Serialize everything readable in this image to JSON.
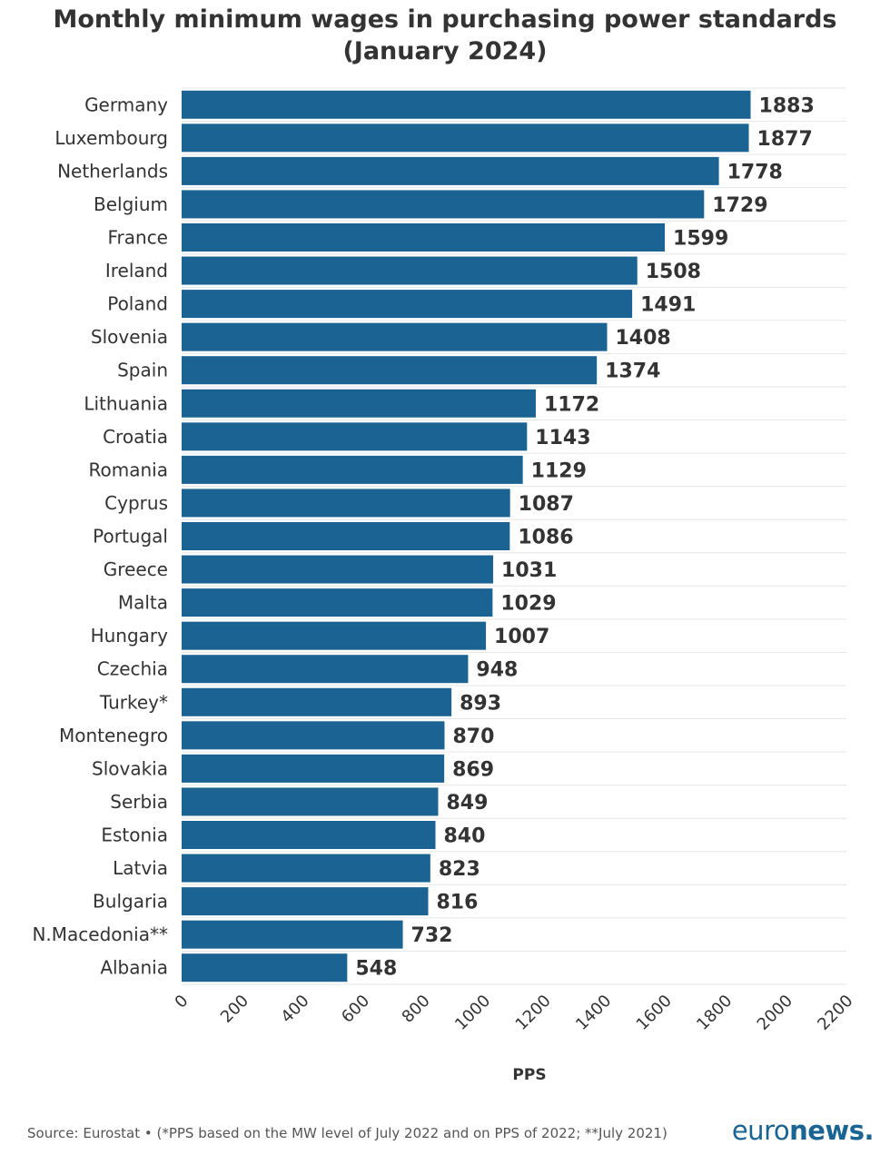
{
  "chart_data": {
    "type": "bar",
    "orientation": "horizontal",
    "title": "Monthly minimum wages in purchasing power standards",
    "subtitle": "(January 2024)",
    "xlabel": "PPS",
    "xlim": [
      0,
      2200
    ],
    "xticks": [
      0,
      200,
      400,
      600,
      800,
      1000,
      1200,
      1400,
      1600,
      1800,
      2000,
      2200
    ],
    "grid": true,
    "bar_color": "#1b6393",
    "categories": [
      "Germany",
      "Luxembourg",
      "Netherlands",
      "Belgium",
      "France",
      "Ireland",
      "Poland",
      "Slovenia",
      "Spain",
      "Lithuania",
      "Croatia",
      "Romania",
      "Cyprus",
      "Portugal",
      "Greece",
      "Malta",
      "Hungary",
      "Czechia",
      "Turkey*",
      "Montenegro",
      "Slovakia",
      "Serbia",
      "Estonia",
      "Latvia",
      "Bulgaria",
      "N.Macedonia**",
      "Albania"
    ],
    "values": [
      1883,
      1877,
      1778,
      1729,
      1599,
      1508,
      1491,
      1408,
      1374,
      1172,
      1143,
      1129,
      1087,
      1086,
      1031,
      1029,
      1007,
      948,
      893,
      870,
      869,
      849,
      840,
      823,
      816,
      732,
      548
    ]
  },
  "footer": {
    "source": "Source: Eurostat • (*PPS based on the MW level of July 2022 and on PPS of 2022; **July 2021)",
    "logo_light": "euro",
    "logo_bold": "news",
    "logo_dot": "."
  }
}
